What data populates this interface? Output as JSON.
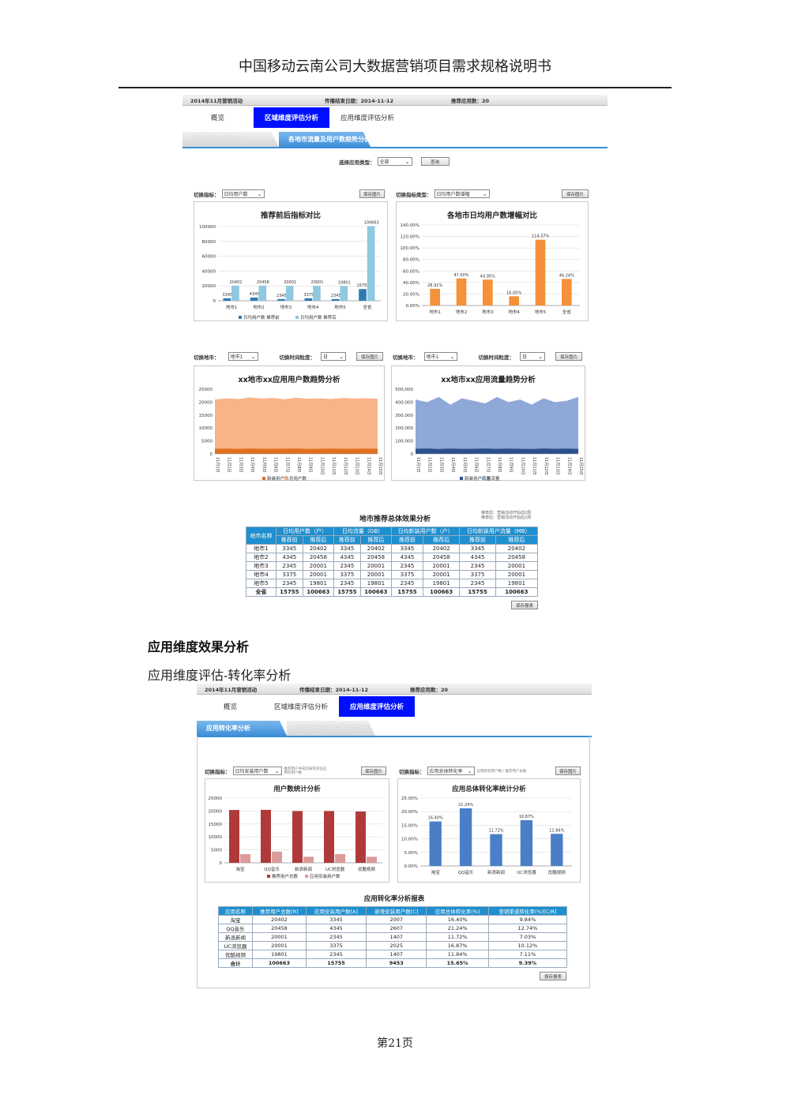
{
  "doc": {
    "header": "中国移动云南公司大数据营销项目需求规格说明书",
    "footer": "第21页",
    "section_title": "应用维度效果分析",
    "subsection_title": "应用维度评估-转化率分析"
  },
  "top_shot": {
    "topbar": {
      "campaign": "2014年11月营销活动",
      "end_date": "传播结束日期：2014-11-12",
      "apps": "推荐应用数：20"
    },
    "tabs": [
      "概览",
      "区域维度评估分析",
      "应用维度评估分析"
    ],
    "subtabs": [
      "各地市转化率分析",
      "各地市流量及用户数趋势分析"
    ],
    "app_type_label": "选择应用类型：",
    "app_type_value": "全部",
    "query_btn": "查询",
    "switch_metric_label": "切换指标：",
    "switch_metric_value": "日均用户数",
    "save_img": "保存图片",
    "switch_type_label": "切换指标类型：",
    "switch_type_value": "日均用户数增幅",
    "switch_city_label": "切换地市：",
    "switch_city_value": "地市1",
    "switch_grain_label": "切换时间粒度：",
    "switch_grain_value": "日",
    "table_title": "地市推荐总体效果分析",
    "table_note_1": "推荐前：营销活动开始前2周",
    "table_note_2": "推荐后：营销活动开始后2周",
    "save_table": "保存报表",
    "table_groups": [
      "日均用户数（户）",
      "日均流量（GB）",
      "日均新装用户数（户）",
      "日均新装用户流量（MB）"
    ],
    "table_sub": [
      "推荐前",
      "推荐后"
    ],
    "table_city_header": "地市名称",
    "table_rows": [
      [
        "地市1",
        "3345",
        "20402",
        "3345",
        "20402",
        "3345",
        "20402",
        "3345",
        "20402"
      ],
      [
        "地市2",
        "4345",
        "20458",
        "4345",
        "20458",
        "4345",
        "20458",
        "4345",
        "20458"
      ],
      [
        "地市3",
        "2345",
        "20001",
        "2345",
        "20001",
        "2345",
        "20001",
        "2345",
        "20001"
      ],
      [
        "地市4",
        "3375",
        "20001",
        "3375",
        "20001",
        "3375",
        "20001",
        "3375",
        "20001"
      ],
      [
        "地市5",
        "2345",
        "19801",
        "2345",
        "19801",
        "2345",
        "19801",
        "2345",
        "19801"
      ]
    ],
    "table_total": [
      "全省",
      "15755",
      "100663",
      "15755",
      "100663",
      "15755",
      "100663",
      "15755",
      "100663"
    ]
  },
  "bottom_shot": {
    "topbar": {
      "campaign": "2014年11月营销活动",
      "end_date": "传播结束日期：2014-11-12",
      "apps": "推荐应用数：20"
    },
    "tabs": [
      "概览",
      "区域维度评估分析",
      "应用维度评估分析"
    ],
    "subtabs": [
      "应用转化率分析",
      "应用流量与用户数趋势分析"
    ],
    "switch_metric_label": "切换指标：",
    "switch_metric_value": "日均安装用户数",
    "metric_hint": "推荐用户中成功安装对应应用的用户数",
    "save_img": "保存图片",
    "switch_metric2_value": "应用总体转化率",
    "metric2_hint": "应用新装用户数 / 推荐用户总数",
    "table_title": "应用转化率分析报表",
    "table_headers": [
      "应用名称",
      "推荐用户总数[R]",
      "应用安装用户数[A]",
      "新增安装用户数[C]",
      "应用总体转化率(%)",
      "营销渠道转化率(%)[C/R]"
    ],
    "table_rows": [
      [
        "淘宝",
        "20402",
        "3345",
        "2007",
        "16.40%",
        "9.84%"
      ],
      [
        "QQ音乐",
        "20458",
        "4345",
        "2607",
        "21.24%",
        "12.74%"
      ],
      [
        "新浪新闻",
        "20001",
        "2345",
        "1407",
        "11.72%",
        "7.03%"
      ],
      [
        "UC浏览器",
        "20001",
        "3375",
        "2025",
        "16.87%",
        "10.12%"
      ],
      [
        "优酷视频",
        "19801",
        "2345",
        "1407",
        "11.84%",
        "7.11%"
      ]
    ],
    "table_total": [
      "合计",
      "100663",
      "15755",
      "9453",
      "15.65%",
      "9.39%"
    ],
    "save_table": "保存报表"
  },
  "chart_data": [
    {
      "type": "bar",
      "title": "推荐前后指标对比",
      "categories": [
        "地市1",
        "地市2",
        "地市3",
        "地市4",
        "地市5",
        "全省"
      ],
      "series": [
        {
          "name": "日均用户数 推荐前",
          "values": [
            3345,
            4345,
            2345,
            3375,
            2345,
            15755
          ]
        },
        {
          "name": "日均用户数 推荐后",
          "values": [
            20402,
            20458,
            20001,
            20001,
            19801,
            100663
          ]
        }
      ],
      "ylim": [
        0,
        100000
      ],
      "yticks": [
        "0",
        "20000",
        "40000",
        "60000",
        "80000",
        "100000"
      ],
      "colors": [
        "#2e7bb4",
        "#8fc8e0"
      ]
    },
    {
      "type": "bar",
      "title": "各地市日均用户数增幅对比",
      "categories": [
        "地市1",
        "地市2",
        "地市3",
        "地市4",
        "地市5",
        "全省"
      ],
      "values": [
        28.91,
        47.0,
        44.95,
        16.0,
        114.37,
        46.24
      ],
      "labels": [
        "28.91%",
        "47.00%",
        "44.95%",
        "16.00%",
        "114.37%",
        "46.24%"
      ],
      "ylim": [
        0,
        140
      ],
      "yticks": [
        "0.00%",
        "20.00%",
        "40.00%",
        "60.00%",
        "80.00%",
        "100.00%",
        "120.00%",
        "140.00%"
      ],
      "colors": [
        "#f4913a"
      ]
    },
    {
      "type": "area",
      "title": "xx地市xx应用用户数趋势分析",
      "x": [
        "11月1日",
        "11月2日",
        "11月3日",
        "11月4日",
        "11月5日",
        "11月6日",
        "11月7日",
        "11月8日",
        "11月9日",
        "11月10日",
        "11月11日",
        "11月12日",
        "11月13日",
        "11月14日",
        "11月15日"
      ],
      "series": [
        {
          "name": "新装用户数",
          "values": [
            2000,
            2050,
            1950,
            2100,
            2000,
            1980,
            2020,
            2100,
            1950,
            2000,
            2050,
            1980,
            2000,
            2050,
            2000
          ]
        },
        {
          "name": "总用户数",
          "values": [
            21000,
            21500,
            21200,
            21800,
            21400,
            21600,
            21100,
            21700,
            21300,
            21500,
            21200,
            21600,
            21400,
            21500,
            21300
          ]
        }
      ],
      "ylim": [
        0,
        25000
      ],
      "yticks": [
        "0",
        "5000",
        "10000",
        "15000",
        "20000",
        "25000"
      ],
      "colors": [
        "#e07020",
        "#f8b488"
      ]
    },
    {
      "type": "area",
      "title": "xx地市xx应用流量趋势分析",
      "x": [
        "11月1日",
        "11月2日",
        "11月3日",
        "11月4日",
        "11月5日",
        "11月6日",
        "11月7日",
        "11月8日",
        "11月9日",
        "11月10日",
        "11月11日",
        "11月12日",
        "11月13日",
        "11月14日",
        "11月15日"
      ],
      "series": [
        {
          "name": "新装用户流量",
          "values": [
            40000,
            42000,
            38000,
            41000,
            39000,
            40000,
            42000,
            39000,
            41000,
            40000,
            38000,
            42000,
            40000,
            41000,
            39000
          ]
        },
        {
          "name": "总流量",
          "values": [
            420000,
            400000,
            440000,
            380000,
            430000,
            410000,
            390000,
            440000,
            400000,
            420000,
            380000,
            430000,
            400000,
            410000,
            440000
          ]
        }
      ],
      "ylim": [
        0,
        500000
      ],
      "yticks": [
        "0",
        "100,000",
        "200,000",
        "300,000",
        "400,000",
        "500,000"
      ],
      "colors": [
        "#2c4f8e",
        "#8ea9d8"
      ]
    },
    {
      "type": "bar",
      "title": "用户数统计分析",
      "categories": [
        "淘宝",
        "QQ音乐",
        "新浪新闻",
        "UC浏览器",
        "优酷视频"
      ],
      "series": [
        {
          "name": "推荐用户总数",
          "values": [
            20402,
            20458,
            20001,
            20001,
            19801
          ]
        },
        {
          "name": "应用安装用户数",
          "values": [
            3345,
            4345,
            2345,
            3375,
            2345
          ]
        }
      ],
      "ylim": [
        0,
        25000
      ],
      "yticks": [
        "0",
        "5000",
        "10000",
        "15000",
        "20000",
        "25000"
      ],
      "colors": [
        "#b03a3a",
        "#dc9a9a"
      ]
    },
    {
      "type": "bar",
      "title": "应用总体转化率统计分析",
      "categories": [
        "淘宝",
        "QQ音乐",
        "新浪新闻",
        "UC浏览器",
        "优酷视频"
      ],
      "values": [
        16.4,
        21.24,
        11.72,
        16.87,
        11.84
      ],
      "labels": [
        "16.40%",
        "21.24%",
        "11.72%",
        "16.87%",
        "11.84%"
      ],
      "ylim": [
        0,
        25
      ],
      "yticks": [
        "0.00%",
        "5.00%",
        "10.00%",
        "15.00%",
        "20.00%",
        "25.00%"
      ],
      "colors": [
        "#4a7fc8"
      ]
    }
  ]
}
